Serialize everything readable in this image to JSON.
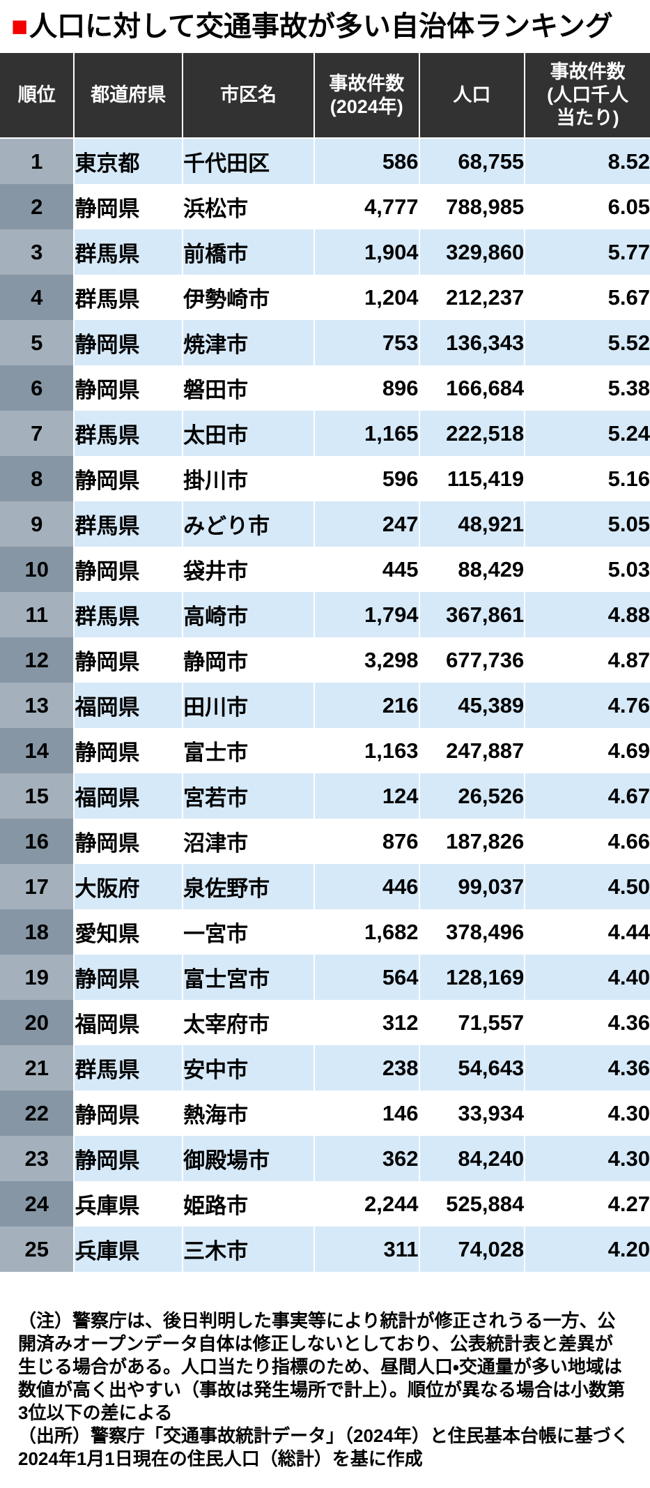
{
  "title": {
    "marker": "■",
    "text": "人口に対して交通事故が多い自治体ランキング"
  },
  "colors": {
    "accent_red": "#f40000",
    "header_bg": "#323232",
    "row_alt_blue": "#d6e9f8",
    "row_white": "#ffffff",
    "rank_cell_on_blue": "#a4b1bc",
    "rank_cell_on_white": "#8696a4",
    "header_text": "#ffffff",
    "body_text": "#000000"
  },
  "table": {
    "headers": [
      "順位",
      "都道府県",
      "市区名",
      "事故件数\n(2024年)",
      "人口",
      "事故件数\n(人口千人\n当たり)"
    ],
    "rows": [
      {
        "rank": "1",
        "prefecture": "東京都",
        "city": "千代田区",
        "accidents": "586",
        "population": "68,755",
        "per_thousand": "8.52"
      },
      {
        "rank": "2",
        "prefecture": "静岡県",
        "city": "浜松市",
        "accidents": "4,777",
        "population": "788,985",
        "per_thousand": "6.05"
      },
      {
        "rank": "3",
        "prefecture": "群馬県",
        "city": "前橋市",
        "accidents": "1,904",
        "population": "329,860",
        "per_thousand": "5.77"
      },
      {
        "rank": "4",
        "prefecture": "群馬県",
        "city": "伊勢崎市",
        "accidents": "1,204",
        "population": "212,237",
        "per_thousand": "5.67"
      },
      {
        "rank": "5",
        "prefecture": "静岡県",
        "city": "焼津市",
        "accidents": "753",
        "population": "136,343",
        "per_thousand": "5.52"
      },
      {
        "rank": "6",
        "prefecture": "静岡県",
        "city": "磐田市",
        "accidents": "896",
        "population": "166,684",
        "per_thousand": "5.38"
      },
      {
        "rank": "7",
        "prefecture": "群馬県",
        "city": "太田市",
        "accidents": "1,165",
        "population": "222,518",
        "per_thousand": "5.24"
      },
      {
        "rank": "8",
        "prefecture": "静岡県",
        "city": "掛川市",
        "accidents": "596",
        "population": "115,419",
        "per_thousand": "5.16"
      },
      {
        "rank": "9",
        "prefecture": "群馬県",
        "city": "みどり市",
        "accidents": "247",
        "population": "48,921",
        "per_thousand": "5.05"
      },
      {
        "rank": "10",
        "prefecture": "静岡県",
        "city": "袋井市",
        "accidents": "445",
        "population": "88,429",
        "per_thousand": "5.03"
      },
      {
        "rank": "11",
        "prefecture": "群馬県",
        "city": "高崎市",
        "accidents": "1,794",
        "population": "367,861",
        "per_thousand": "4.88"
      },
      {
        "rank": "12",
        "prefecture": "静岡県",
        "city": "静岡市",
        "accidents": "3,298",
        "population": "677,736",
        "per_thousand": "4.87"
      },
      {
        "rank": "13",
        "prefecture": "福岡県",
        "city": "田川市",
        "accidents": "216",
        "population": "45,389",
        "per_thousand": "4.76"
      },
      {
        "rank": "14",
        "prefecture": "静岡県",
        "city": "富士市",
        "accidents": "1,163",
        "population": "247,887",
        "per_thousand": "4.69"
      },
      {
        "rank": "15",
        "prefecture": "福岡県",
        "city": "宮若市",
        "accidents": "124",
        "population": "26,526",
        "per_thousand": "4.67"
      },
      {
        "rank": "16",
        "prefecture": "静岡県",
        "city": "沼津市",
        "accidents": "876",
        "population": "187,826",
        "per_thousand": "4.66"
      },
      {
        "rank": "17",
        "prefecture": "大阪府",
        "city": "泉佐野市",
        "accidents": "446",
        "population": "99,037",
        "per_thousand": "4.50"
      },
      {
        "rank": "18",
        "prefecture": "愛知県",
        "city": "一宮市",
        "accidents": "1,682",
        "population": "378,496",
        "per_thousand": "4.44"
      },
      {
        "rank": "19",
        "prefecture": "静岡県",
        "city": "富士宮市",
        "accidents": "564",
        "population": "128,169",
        "per_thousand": "4.40"
      },
      {
        "rank": "20",
        "prefecture": "福岡県",
        "city": "太宰府市",
        "accidents": "312",
        "population": "71,557",
        "per_thousand": "4.36"
      },
      {
        "rank": "21",
        "prefecture": "群馬県",
        "city": "安中市",
        "accidents": "238",
        "population": "54,643",
        "per_thousand": "4.36"
      },
      {
        "rank": "22",
        "prefecture": "静岡県",
        "city": "熱海市",
        "accidents": "146",
        "population": "33,934",
        "per_thousand": "4.30"
      },
      {
        "rank": "23",
        "prefecture": "静岡県",
        "city": "御殿場市",
        "accidents": "362",
        "population": "84,240",
        "per_thousand": "4.30"
      },
      {
        "rank": "24",
        "prefecture": "兵庫県",
        "city": "姫路市",
        "accidents": "2,244",
        "population": "525,884",
        "per_thousand": "4.27"
      },
      {
        "rank": "25",
        "prefecture": "兵庫県",
        "city": "三木市",
        "accidents": "311",
        "population": "74,028",
        "per_thousand": "4.20"
      }
    ]
  },
  "notes": {
    "note": "（注）警察庁は、後日判明した事実等により統計が修正されうる一方、公開済みオープンデータ自体は修正しないとしており、公表統計表と差異が生じる場合がある。人口当たり指標のため、昼間人口・交通量が多い地域は数値が高く出やすい（事故は発生場所で計上）。順位が異なる場合は小数第3位以下の差による",
    "source": "（出所）警察庁「交通事故統計データ」（2024年）と住民基本台帳に基づく2024年1月1日現在の住民人口（総計）を基に作成"
  },
  "chart_data": {
    "type": "table",
    "title": "人口に対して交通事故が多い自治体ランキング",
    "columns": [
      "順位",
      "都道府県",
      "市区名",
      "事故件数(2024年)",
      "人口",
      "事故件数(人口千人当たり)"
    ],
    "rows": [
      [
        1,
        "東京都",
        "千代田区",
        586,
        68755,
        8.52
      ],
      [
        2,
        "静岡県",
        "浜松市",
        4777,
        788985,
        6.05
      ],
      [
        3,
        "群馬県",
        "前橋市",
        1904,
        329860,
        5.77
      ],
      [
        4,
        "群馬県",
        "伊勢崎市",
        1204,
        212237,
        5.67
      ],
      [
        5,
        "静岡県",
        "焼津市",
        753,
        136343,
        5.52
      ],
      [
        6,
        "静岡県",
        "磐田市",
        896,
        166684,
        5.38
      ],
      [
        7,
        "群馬県",
        "太田市",
        1165,
        222518,
        5.24
      ],
      [
        8,
        "静岡県",
        "掛川市",
        596,
        115419,
        5.16
      ],
      [
        9,
        "群馬県",
        "みどり市",
        247,
        48921,
        5.05
      ],
      [
        10,
        "静岡県",
        "袋井市",
        445,
        88429,
        5.03
      ],
      [
        11,
        "群馬県",
        "高崎市",
        1794,
        367861,
        4.88
      ],
      [
        12,
        "静岡県",
        "静岡市",
        3298,
        677736,
        4.87
      ],
      [
        13,
        "福岡県",
        "田川市",
        216,
        45389,
        4.76
      ],
      [
        14,
        "静岡県",
        "富士市",
        1163,
        247887,
        4.69
      ],
      [
        15,
        "福岡県",
        "宮若市",
        124,
        26526,
        4.67
      ],
      [
        16,
        "静岡県",
        "沼津市",
        876,
        187826,
        4.66
      ],
      [
        17,
        "大阪府",
        "泉佐野市",
        446,
        99037,
        4.5
      ],
      [
        18,
        "愛知県",
        "一宮市",
        1682,
        378496,
        4.44
      ],
      [
        19,
        "静岡県",
        "富士宮市",
        564,
        128169,
        4.4
      ],
      [
        20,
        "福岡県",
        "太宰府市",
        312,
        71557,
        4.36
      ],
      [
        21,
        "群馬県",
        "安中市",
        238,
        54643,
        4.36
      ],
      [
        22,
        "静岡県",
        "熱海市",
        146,
        33934,
        4.3
      ],
      [
        23,
        "静岡県",
        "御殿場市",
        362,
        84240,
        4.3
      ],
      [
        24,
        "兵庫県",
        "姫路市",
        2244,
        525884,
        4.27
      ],
      [
        25,
        "兵庫県",
        "三木市",
        311,
        74028,
        4.2
      ]
    ]
  }
}
